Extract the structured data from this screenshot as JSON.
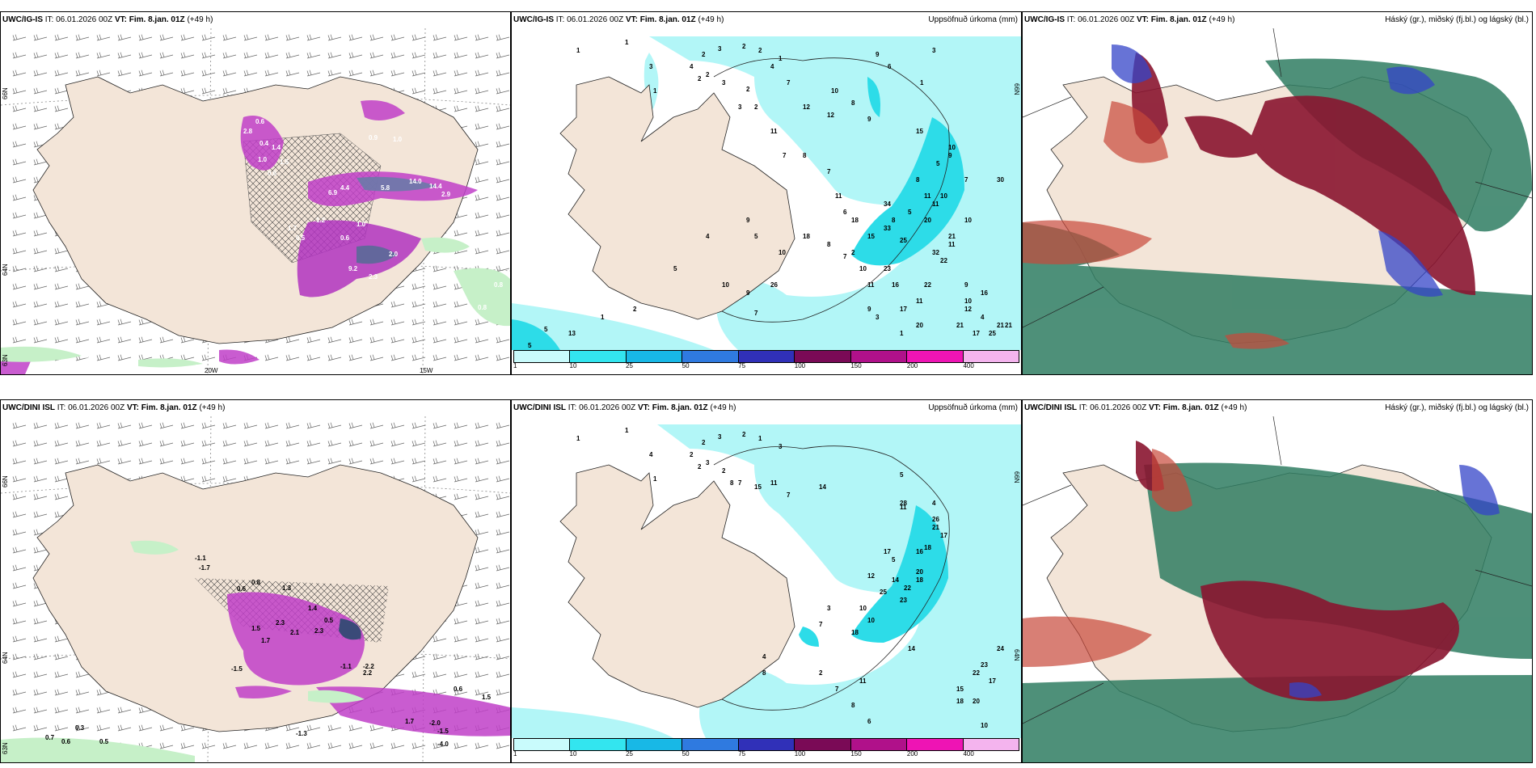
{
  "panels": [
    {
      "id": "p1",
      "model": "UWC/IG-IS",
      "it_label": "IT:",
      "it_value": "06.01.2026 00Z",
      "vt_label": "VT:",
      "vt_value": "Fim. 8.jan. 01Z",
      "lead": "(+49 h)",
      "right_title": "",
      "lat_labels": [
        "66N",
        "64N",
        "63N"
      ],
      "lon_labels": [
        "20W",
        "15W"
      ],
      "values": [
        "0.8",
        "0.7",
        "0.8",
        "0.8",
        "1.0",
        "0.9",
        "14.0",
        "14.4",
        "6.9",
        "5.8",
        "2.9",
        "4.4",
        "1.2",
        "2.0",
        "9.2",
        "2.3",
        "2.8",
        "0.6",
        "0.4",
        "1.4",
        "1.0",
        "1.5",
        "0.6",
        "1.7",
        "0.5",
        "1.0",
        "0.6"
      ]
    },
    {
      "id": "p2",
      "model": "UWC/IG-IS",
      "it_label": "IT:",
      "it_value": "06.01.2026 00Z",
      "vt_label": "VT:",
      "vt_value": "Fim. 8.jan. 01Z",
      "lead": "(+49 h)",
      "right_title": "Uppsöfnuð úrkoma (mm)",
      "lat_labels": [
        "66N"
      ],
      "values": [
        "1",
        "1",
        "2",
        "3",
        "2",
        "2",
        "1",
        "3",
        "4",
        "2",
        "1",
        "2",
        "3",
        "2",
        "4",
        "2",
        "3",
        "12",
        "9",
        "6",
        "3",
        "1",
        "10",
        "8",
        "9",
        "7",
        "12",
        "15",
        "10",
        "11",
        "7",
        "8",
        "7",
        "11",
        "6",
        "8",
        "5",
        "9",
        "7",
        "30",
        "11",
        "11",
        "10",
        "34",
        "5",
        "8",
        "20",
        "21",
        "22",
        "18",
        "15",
        "25",
        "33",
        "32",
        "10",
        "11",
        "7",
        "17",
        "20",
        "9",
        "16",
        "10",
        "12",
        "9",
        "11",
        "23",
        "16",
        "22",
        "10",
        "11",
        "10",
        "9",
        "26",
        "7",
        "5",
        "5",
        "13",
        "1",
        "2",
        "5",
        "4",
        "9",
        "5",
        "10",
        "18",
        "8",
        "2",
        "3",
        "1",
        "4",
        "21",
        "25",
        "21",
        "17",
        "21"
      ],
      "legend_ticks": [
        "1",
        "10",
        "25",
        "50",
        "75",
        "100",
        "150",
        "200",
        "400"
      ]
    },
    {
      "id": "p3",
      "model": "UWC/IG-IS",
      "it_label": "IT:",
      "it_value": "06.01.2026 00Z",
      "vt_label": "VT:",
      "vt_value": "Fim. 8.jan. 01Z",
      "lead": "(+49 h)",
      "right_title": "Háský (gr.), miðský (fj.bl.) og lágský (bl.)"
    },
    {
      "id": "p4",
      "model": "UWC/DINI ISL",
      "it_label": "IT:",
      "it_value": "06.01.2026 00Z",
      "vt_label": "VT:",
      "vt_value": "Fim. 8.jan. 01Z",
      "lead": "(+49 h)",
      "right_title": "",
      "lat_labels": [
        "66N",
        "64N",
        "63N"
      ],
      "values": [
        "-1.1",
        "-1.7",
        "0.6",
        "0.8",
        "1.3",
        "1.4",
        "2.3",
        "1.5",
        "2.1",
        "1.7",
        "2.3",
        "0.5",
        "-1.5",
        "-2.2",
        "-1.1",
        "2.2",
        "0.6",
        "-2.0",
        "-1.5",
        "-4.0",
        "0.7",
        "0.6",
        "0.5",
        "0.3",
        "-1.3",
        "1.7",
        "1.5"
      ]
    },
    {
      "id": "p5",
      "model": "UWC/DINI ISL",
      "it_label": "IT:",
      "it_value": "06.01.2026 00Z",
      "vt_label": "VT:",
      "vt_value": "Fim. 8.jan. 01Z",
      "lead": "(+49 h)",
      "right_title": "Uppsöfnuð úrkoma (mm)",
      "lat_labels": [
        "66N",
        "64N"
      ],
      "values": [
        "1",
        "1",
        "2",
        "3",
        "2",
        "1",
        "3",
        "4",
        "2",
        "3",
        "1",
        "2",
        "2",
        "8",
        "7",
        "15",
        "11",
        "7",
        "14",
        "5",
        "28",
        "11",
        "4",
        "26",
        "21",
        "17",
        "18",
        "16",
        "17",
        "20",
        "18",
        "14",
        "22",
        "23",
        "12",
        "25",
        "10",
        "10",
        "18",
        "5",
        "14",
        "24",
        "22",
        "23",
        "17",
        "15",
        "18",
        "20",
        "10",
        "11",
        "7",
        "8",
        "6",
        "4",
        "8",
        "2",
        "3",
        "7"
      ],
      "legend_ticks": [
        "1",
        "10",
        "25",
        "50",
        "75",
        "100",
        "150",
        "200",
        "400"
      ]
    },
    {
      "id": "p6",
      "model": "UWC/DINI ISL",
      "it_label": "IT:",
      "it_value": "06.01.2026 00Z",
      "vt_label": "VT:",
      "vt_value": "Fim. 8.jan. 01Z",
      "lead": "(+49 h)",
      "right_title": "Háský (gr.), miðský (fj.bl.) og lágský (bl.)"
    }
  ],
  "colors": {
    "land": "#f3e5d8",
    "sea": "#ffffff",
    "precip_light": "#b2f6f7",
    "precip_mid": "#2ddce8",
    "magenta": "#c040c8",
    "magenta_dark": "#8a1a9a",
    "green_light": "#c6f0c8",
    "cloud_high": "#2f7d62",
    "cloud_mid": "#8a1530",
    "cloud_low": "#3444c8",
    "red": "#c8483a"
  },
  "legend_colors": [
    "#c9fbfc",
    "#33e5ef",
    "#18b8e6",
    "#2f7ae0",
    "#3030b8",
    "#7a0a56",
    "#b0118a",
    "#ee14b4",
    "#f4b4ee"
  ]
}
